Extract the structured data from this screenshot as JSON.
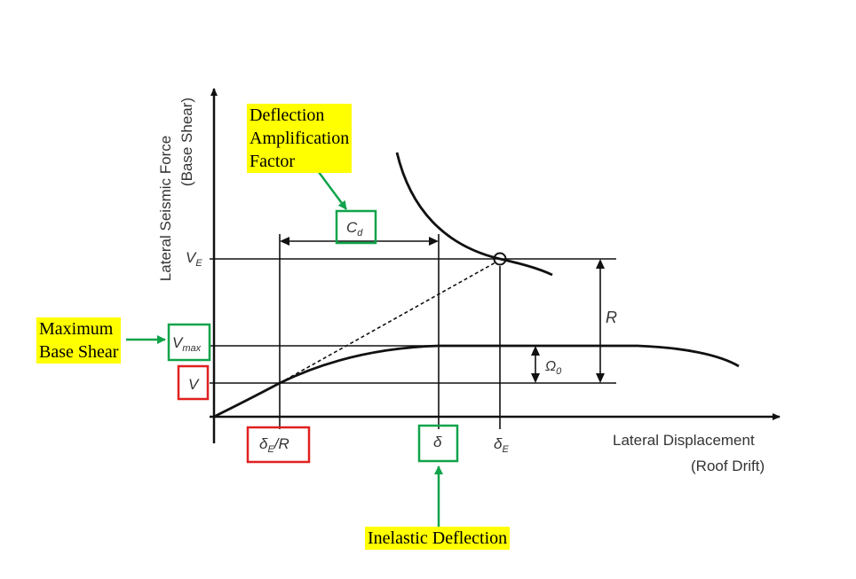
{
  "axes": {
    "y_label_line1": "Lateral Seismic Force",
    "y_label_line2": "(Base Shear)",
    "x_label_line1": "Lateral Displacement",
    "x_label_line2": "(Roof Drift)"
  },
  "y_ticks": {
    "ve": {
      "main": "V",
      "sub": "E"
    },
    "vmax": {
      "main": "V",
      "sub": "max"
    },
    "v": {
      "main": "V"
    }
  },
  "x_ticks": {
    "de_over_r": {
      "main": "δ",
      "sub": "E",
      "tail": "/R"
    },
    "delta": {
      "main": "δ"
    },
    "de": {
      "main": "δ",
      "sub": "E"
    }
  },
  "factors": {
    "cd": {
      "main": "C",
      "sub": "d"
    },
    "r": "R",
    "omega": {
      "main": "Ω",
      "sub": "0"
    }
  },
  "callouts": {
    "deflection_amplification": "Deflection\nAmplification\nFactor",
    "maximum_base_shear": "Maximum\nBase Shear",
    "inelastic_deflection": "Inelastic Deflection"
  },
  "colors": {
    "callout_highlight": "#ffff00",
    "green_box": "#10a34a",
    "red_box": "#e02020",
    "curve": "#111111"
  }
}
